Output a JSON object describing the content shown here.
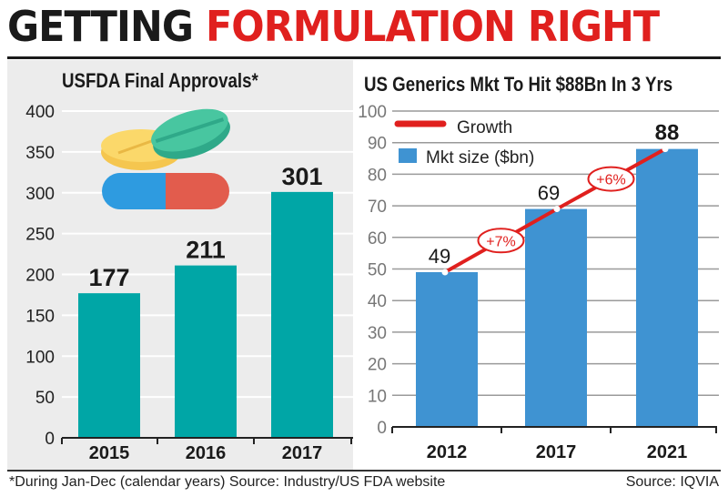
{
  "headline": {
    "part1": "GETTING",
    "part2": "FORMULATION RIGHT"
  },
  "footnote": "*During Jan-Dec (calendar years) Source: Industry/US FDA website",
  "source": "Source: IQVIA",
  "colors": {
    "teal": "#00a6a6",
    "blue": "#3f93d2",
    "red": "#e0201e",
    "panel_bg": "#ececec"
  },
  "chart_data": [
    {
      "type": "bar",
      "title": "USFDA Final Approvals*",
      "categories": [
        "2015",
        "2016",
        "2017"
      ],
      "values": [
        177,
        211,
        301
      ],
      "data_labels": [
        "177",
        "211",
        "301"
      ],
      "ylim": [
        0,
        400
      ],
      "yticks": [
        "0",
        "50",
        "100",
        "150",
        "200",
        "250",
        "300",
        "350",
        "400"
      ],
      "grid": true,
      "decoration": "pills-illustration"
    },
    {
      "type": "bar+line",
      "title": "US Generics Mkt To Hit $88Bn In 3 Yrs",
      "categories": [
        "2012",
        "2017",
        "2021"
      ],
      "series": [
        {
          "name": "Mkt size ($bn)",
          "type": "bar",
          "values": [
            49,
            69,
            88
          ]
        },
        {
          "name": "Growth",
          "type": "line",
          "values": [
            49,
            69,
            88
          ]
        }
      ],
      "data_labels": [
        "49",
        "69",
        "88"
      ],
      "growth_labels": [
        "+7%",
        "+6%"
      ],
      "ylim": [
        0,
        100
      ],
      "yticks": [
        "0",
        "10",
        "20",
        "30",
        "40",
        "50",
        "60",
        "70",
        "80",
        "90",
        "100"
      ],
      "grid": true,
      "legend": "top-left"
    }
  ]
}
